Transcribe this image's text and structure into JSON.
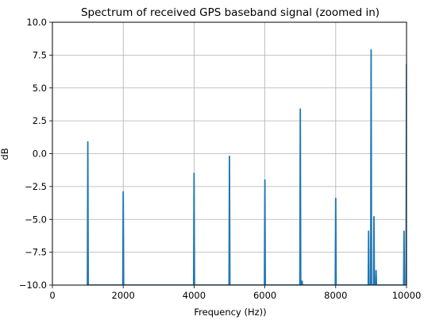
{
  "chart_data": {
    "type": "line",
    "title": "Spectrum of received GPS baseband signal (zoomed in)",
    "xlabel": "Frequency (Hz))",
    "ylabel": "dB",
    "xlim": [
      0,
      10000
    ],
    "ylim": [
      -10.0,
      10.0
    ],
    "x_ticks": [
      0,
      2000,
      4000,
      6000,
      8000,
      10000
    ],
    "x_tick_labels": [
      "0",
      "2000",
      "4000",
      "6000",
      "8000",
      "10000"
    ],
    "y_ticks": [
      -10.0,
      -7.5,
      -5.0,
      -2.5,
      0.0,
      2.5,
      5.0,
      7.5,
      10.0
    ],
    "y_tick_labels": [
      "−10.0",
      "−7.5",
      "−5.0",
      "−2.5",
      "0.0",
      "2.5",
      "5.0",
      "7.5",
      "10.0"
    ],
    "grid": true,
    "line_color": "#1f77b4",
    "series": [
      {
        "peaks": [
          {
            "f": 1000,
            "db": 0.9
          },
          {
            "f": 2000,
            "db": -2.9
          },
          {
            "f": 4000,
            "db": -1.5
          },
          {
            "f": 5000,
            "db": -0.2
          },
          {
            "f": 6000,
            "db": -2.0
          },
          {
            "f": 7000,
            "db": 3.4
          },
          {
            "f": 7050,
            "db": -9.7
          },
          {
            "f": 8000,
            "db": -3.4
          },
          {
            "f": 8930,
            "db": -5.9
          },
          {
            "f": 9000,
            "db": 7.9
          },
          {
            "f": 9080,
            "db": -4.8
          },
          {
            "f": 9140,
            "db": -8.9
          },
          {
            "f": 9930,
            "db": -5.9
          },
          {
            "f": 10000,
            "db": 6.8
          }
        ]
      }
    ]
  }
}
